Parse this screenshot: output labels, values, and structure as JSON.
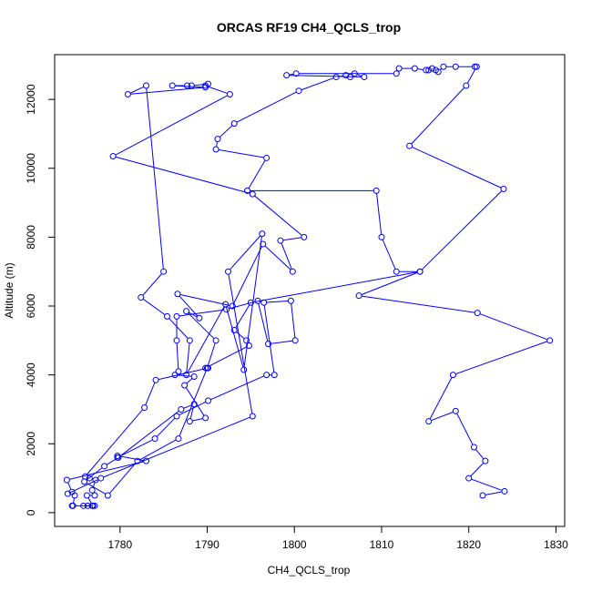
{
  "chart_data": {
    "type": "line",
    "title": "ORCAS RF19 CH4_QCLS_trop",
    "xlabel": "CH4_QCLS_trop",
    "ylabel": "Altitude (m)",
    "xlim": [
      1772.5,
      1831.0
    ],
    "ylim": [
      -400,
      13300
    ],
    "xticks": [
      1780,
      1790,
      1800,
      1810,
      1820,
      1830
    ],
    "yticks": [
      0,
      2000,
      4000,
      6000,
      8000,
      10000,
      12000
    ],
    "grid": false,
    "colors": {
      "series": "#0000ff",
      "axis": "#000000"
    },
    "series": [
      {
        "marker": "open-circle",
        "points": [
          [
            1821.6,
            500
          ],
          [
            1824.1,
            620
          ],
          [
            1820.0,
            1000
          ],
          [
            1821.9,
            1500
          ],
          [
            1820.6,
            1900
          ],
          [
            1818.5,
            2950
          ],
          [
            1815.4,
            2650
          ],
          [
            1818.2,
            4000
          ],
          [
            1829.3,
            5000
          ],
          [
            1821.0,
            5800
          ],
          [
            1807.4,
            6300
          ],
          [
            1814.4,
            7000
          ],
          [
            1811.7,
            7000
          ],
          [
            1810.0,
            8000
          ],
          [
            1809.4,
            9350
          ],
          [
            1794.6,
            9350
          ],
          [
            1796.8,
            10300
          ],
          [
            1791.0,
            10550
          ],
          [
            1791.2,
            10850
          ],
          [
            1793.1,
            11300
          ],
          [
            1800.5,
            12250
          ],
          [
            1804.8,
            12650
          ],
          [
            1805.9,
            12700
          ],
          [
            1806.4,
            12650
          ],
          [
            1806.9,
            12750
          ],
          [
            1808.0,
            12650
          ],
          [
            1799.1,
            12700
          ],
          [
            1800.2,
            12750
          ],
          [
            1811.7,
            12750
          ],
          [
            1812.0,
            12900
          ],
          [
            1813.8,
            12900
          ],
          [
            1815.1,
            12850
          ],
          [
            1815.4,
            12850
          ],
          [
            1815.8,
            12900
          ],
          [
            1816.2,
            12850
          ],
          [
            1816.5,
            12800
          ],
          [
            1817.1,
            12950
          ],
          [
            1818.5,
            12950
          ],
          [
            1820.7,
            12950
          ],
          [
            1820.9,
            12950
          ],
          [
            1819.7,
            12400
          ],
          [
            1813.2,
            10650
          ],
          [
            1824.0,
            9400
          ],
          [
            1814.4,
            7000
          ],
          [
            1795.0,
            6100
          ],
          [
            1793.1,
            5300
          ],
          [
            1794.5,
            5000
          ],
          [
            1794.8,
            4850
          ],
          [
            1789.8,
            4200
          ],
          [
            1790.1,
            4200
          ],
          [
            1784.1,
            3850
          ],
          [
            1782.8,
            3050
          ],
          [
            1776.0,
            1050
          ],
          [
            1776.5,
            1000
          ],
          [
            1777.2,
            950
          ],
          [
            1776.8,
            650
          ],
          [
            1777.1,
            500
          ],
          [
            1776.2,
            500
          ],
          [
            1776.9,
            200
          ],
          [
            1776.8,
            200
          ],
          [
            1776.3,
            200
          ],
          [
            1775.8,
            200
          ],
          [
            1777.1,
            200
          ],
          [
            1774.5,
            200
          ],
          [
            1774.6,
            200
          ],
          [
            1774.8,
            500
          ],
          [
            1774.5,
            600
          ],
          [
            1773.9,
            950
          ],
          [
            1783.0,
            1500
          ],
          [
            1779.7,
            1650
          ],
          [
            1779.7,
            1600
          ],
          [
            1784.0,
            2150
          ],
          [
            1786.5,
            2800
          ],
          [
            1790.1,
            3250
          ],
          [
            1796.8,
            4000
          ],
          [
            1797.7,
            4000
          ],
          [
            1796.5,
            6100
          ],
          [
            1799.6,
            6150
          ],
          [
            1800.1,
            5000
          ],
          [
            1797.0,
            4900
          ],
          [
            1795.8,
            6150
          ],
          [
            1792.2,
            5900
          ],
          [
            1786.5,
            5700
          ],
          [
            1786.5,
            5000
          ],
          [
            1786.7,
            4100
          ],
          [
            1786.3,
            4000
          ],
          [
            1788.5,
            3950
          ],
          [
            1787.4,
            3700
          ],
          [
            1789.8,
            2750
          ],
          [
            1788.0,
            2650
          ],
          [
            1788.5,
            3150
          ],
          [
            1787.0,
            3000
          ],
          [
            1779.8,
            1600
          ],
          [
            1778.2,
            1350
          ],
          [
            1775.9,
            900
          ],
          [
            1778.6,
            500
          ],
          [
            1782.0,
            1500
          ],
          [
            1786.7,
            2150
          ],
          [
            1790.0,
            4200
          ],
          [
            1791.0,
            5000
          ],
          [
            1787.6,
            5850
          ],
          [
            1789.1,
            5650
          ],
          [
            1786.6,
            6350
          ],
          [
            1792.9,
            6000
          ],
          [
            1796.4,
            7800
          ],
          [
            1799.8,
            7000
          ],
          [
            1798.4,
            7900
          ],
          [
            1801.1,
            8000
          ],
          [
            1795.2,
            9250
          ],
          [
            1779.2,
            10350
          ],
          [
            1792.6,
            12150
          ],
          [
            1789.8,
            12400
          ],
          [
            1790.1,
            12450
          ],
          [
            1788.2,
            12400
          ],
          [
            1787.7,
            12400
          ],
          [
            1786.0,
            12400
          ],
          [
            1789.8,
            12350
          ],
          [
            1780.9,
            12150
          ],
          [
            1783.0,
            12400
          ],
          [
            1785.0,
            7000
          ],
          [
            1782.4,
            6250
          ],
          [
            1785.4,
            5700
          ],
          [
            1788.0,
            5000
          ],
          [
            1787.6,
            4000
          ],
          [
            1792.1,
            6050
          ],
          [
            1794.2,
            4150
          ],
          [
            1796.3,
            8100
          ],
          [
            1792.4,
            7000
          ],
          [
            1795.2,
            2800
          ],
          [
            1777.8,
            1000
          ],
          [
            1774.0,
            550
          ]
        ]
      }
    ]
  }
}
